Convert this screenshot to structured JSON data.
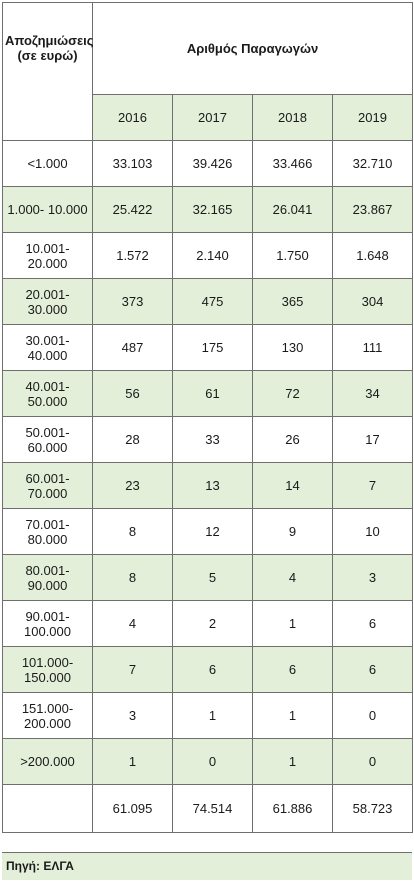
{
  "header": {
    "row_label": "Αποζημιώσεις\n(σε ευρώ)",
    "title": "Αριθμός Παραγωγών"
  },
  "years": [
    "2016",
    "2017",
    "2018",
    "2019"
  ],
  "rows": [
    {
      "range": "<1.000",
      "v": [
        "33.103",
        "39.426",
        "33.466",
        "32.710"
      ]
    },
    {
      "range": "1.000- 10.000",
      "v": [
        "25.422",
        "32.165",
        "26.041",
        "23.867"
      ]
    },
    {
      "range": "10.001-\n20.000",
      "v": [
        "1.572",
        "2.140",
        "1.750",
        "1.648"
      ]
    },
    {
      "range": "20.001-\n30.000",
      "v": [
        "373",
        "475",
        "365",
        "304"
      ]
    },
    {
      "range": "30.001-\n40.000",
      "v": [
        "487",
        "175",
        "130",
        "111"
      ]
    },
    {
      "range": "40.001-\n50.000",
      "v": [
        "56",
        "61",
        "72",
        "34"
      ]
    },
    {
      "range": "50.001-\n60.000",
      "v": [
        "28",
        "33",
        "26",
        "17"
      ]
    },
    {
      "range": "60.001-\n70.000",
      "v": [
        "23",
        "13",
        "14",
        "7"
      ]
    },
    {
      "range": "70.001-\n80.000",
      "v": [
        "8",
        "12",
        "9",
        "10"
      ]
    },
    {
      "range": "80.001-\n90.000",
      "v": [
        "8",
        "5",
        "4",
        "3"
      ]
    },
    {
      "range": "90.001-\n100.000",
      "v": [
        "4",
        "2",
        "1",
        "6"
      ]
    },
    {
      "range": "101.000-\n150.000",
      "v": [
        "7",
        "6",
        "6",
        "6"
      ]
    },
    {
      "range": "151.000-\n200.000",
      "v": [
        "3",
        "1",
        "1",
        "0"
      ]
    },
    {
      "range": ">200.000",
      "v": [
        "1",
        "0",
        "1",
        "0"
      ]
    }
  ],
  "totals": [
    "61.095",
    "74.514",
    "61.886",
    "58.723"
  ],
  "source": "Πηγή: ΕΛΓΑ",
  "colors": {
    "band": "#e3efd8",
    "border": "#6f6f6f"
  }
}
